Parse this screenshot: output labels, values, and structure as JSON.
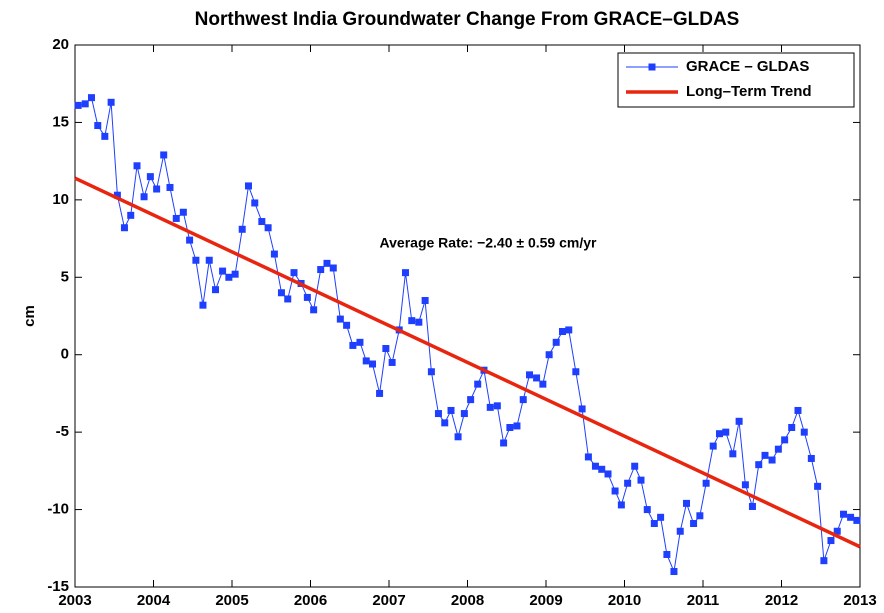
{
  "chart_data": {
    "type": "line",
    "title": "Northwest India Groundwater Change From GRACE–GLDAS",
    "y_label": "cm",
    "annotation": "Average Rate: −2.40 ± 0.59 cm/yr",
    "xlim": [
      2003,
      2013
    ],
    "xticks": [
      2003,
      2004,
      2005,
      2006,
      2007,
      2008,
      2009,
      2010,
      2011,
      2012,
      2013
    ],
    "ylim": [
      -15,
      20
    ],
    "yticks": [
      -15,
      -10,
      -5,
      0,
      5,
      10,
      15,
      20
    ],
    "legend": "upper-right",
    "series": [
      {
        "name": "GRACE – GLDAS",
        "color": "#1f3fff",
        "marker": "square",
        "x": [
          2003.04,
          2003.13,
          2003.21,
          2003.29,
          2003.38,
          2003.46,
          2003.54,
          2003.63,
          2003.71,
          2003.79,
          2003.88,
          2003.96,
          2004.04,
          2004.13,
          2004.21,
          2004.29,
          2004.38,
          2004.46,
          2004.54,
          2004.63,
          2004.71,
          2004.79,
          2004.88,
          2004.96,
          2005.04,
          2005.13,
          2005.21,
          2005.29,
          2005.38,
          2005.46,
          2005.54,
          2005.63,
          2005.71,
          2005.79,
          2005.88,
          2005.96,
          2006.04,
          2006.13,
          2006.21,
          2006.29,
          2006.38,
          2006.46,
          2006.54,
          2006.63,
          2006.71,
          2006.79,
          2006.88,
          2006.96,
          2007.04,
          2007.13,
          2007.21,
          2007.29,
          2007.38,
          2007.46,
          2007.54,
          2007.63,
          2007.71,
          2007.79,
          2007.88,
          2007.96,
          2008.04,
          2008.13,
          2008.21,
          2008.29,
          2008.38,
          2008.46,
          2008.54,
          2008.63,
          2008.71,
          2008.79,
          2008.88,
          2008.96,
          2009.04,
          2009.13,
          2009.21,
          2009.29,
          2009.38,
          2009.46,
          2009.54,
          2009.63,
          2009.71,
          2009.79,
          2009.88,
          2009.96,
          2010.04,
          2010.13,
          2010.21,
          2010.29,
          2010.38,
          2010.46,
          2010.54,
          2010.63,
          2010.71,
          2010.79,
          2010.88,
          2010.96,
          2011.04,
          2011.13,
          2011.21,
          2011.29,
          2011.38,
          2011.46,
          2011.54,
          2011.63,
          2011.71,
          2011.79,
          2011.88,
          2011.96,
          2012.04,
          2012.13,
          2012.21,
          2012.29,
          2012.38,
          2012.46,
          2012.54,
          2012.63,
          2012.71,
          2012.79,
          2012.88,
          2012.96
        ],
        "values": [
          16.1,
          16.2,
          16.6,
          14.8,
          14.1,
          16.3,
          10.3,
          8.2,
          9.0,
          12.2,
          10.2,
          11.5,
          10.7,
          12.9,
          10.8,
          8.8,
          9.2,
          7.4,
          6.1,
          3.2,
          6.1,
          4.2,
          5.4,
          5.0,
          5.2,
          8.1,
          10.9,
          9.8,
          8.6,
          8.2,
          6.5,
          4.0,
          3.6,
          5.3,
          4.6,
          3.7,
          2.9,
          5.5,
          5.9,
          5.6,
          2.3,
          1.9,
          0.6,
          0.8,
          -0.4,
          -0.6,
          -2.5,
          0.4,
          -0.5,
          1.6,
          5.3,
          2.2,
          2.1,
          3.5,
          -1.1,
          -3.8,
          -4.4,
          -3.6,
          -5.3,
          -3.8,
          -2.9,
          -1.9,
          -1.0,
          -3.4,
          -3.3,
          -5.7,
          -4.7,
          -4.6,
          -2.9,
          -1.3,
          -1.5,
          -1.9,
          0.0,
          0.8,
          1.5,
          1.6,
          -1.1,
          -3.5,
          -6.6,
          -7.2,
          -7.4,
          -7.7,
          -8.8,
          -9.7,
          -8.3,
          -7.2,
          -8.1,
          -10.0,
          -10.9,
          -10.5,
          -12.9,
          -14.0,
          -11.4,
          -9.6,
          -10.9,
          -10.4,
          -8.3,
          -5.9,
          -5.1,
          -5.0,
          -6.4,
          -4.3,
          -8.4,
          -9.8,
          -7.1,
          -6.5,
          -6.8,
          -6.1,
          -5.5,
          -4.7,
          -3.6,
          -5.0,
          -6.7,
          -8.5,
          -13.3,
          -12.0,
          -11.4,
          -10.3,
          -10.5,
          -10.7
        ]
      },
      {
        "name": "Long–Term Trend",
        "color": "#e8260f",
        "marker": "none",
        "x": [
          2003,
          2013
        ],
        "values": [
          11.4,
          -12.4
        ]
      }
    ]
  }
}
